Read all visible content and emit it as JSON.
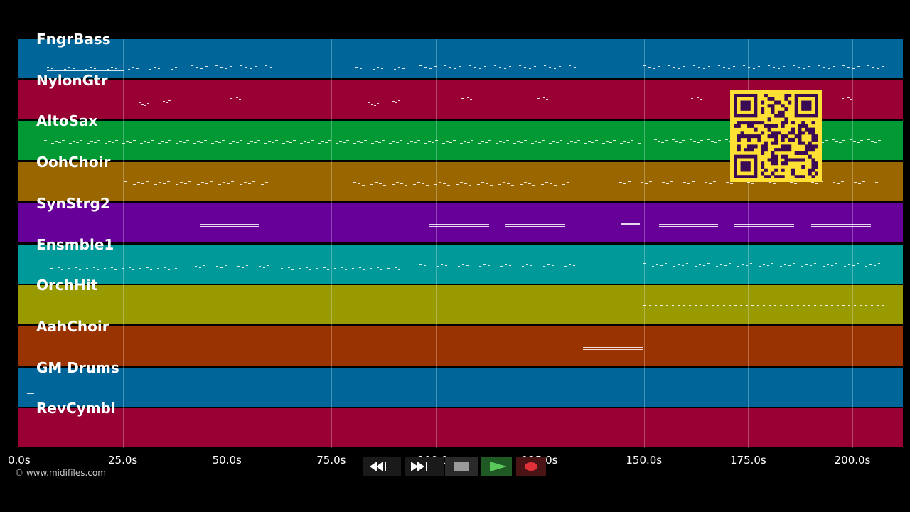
{
  "tracks": [
    {
      "name": "FngrBass",
      "color": "#006699"
    },
    {
      "name": "NylonGtr",
      "color": "#990033"
    },
    {
      "name": "AltoSax",
      "color": "#009933"
    },
    {
      "name": "OohChoir",
      "color": "#996600"
    },
    {
      "name": "SynStrg2",
      "color": "#660099"
    },
    {
      "name": "Ensmble1",
      "color": "#009999"
    },
    {
      "name": "OrchHit",
      "color": "#999900"
    },
    {
      "name": "AahChoir",
      "color": "#993300"
    },
    {
      "name": "GM Drums",
      "color": "#006699"
    },
    {
      "name": "RevCymbl",
      "color": "#990033"
    }
  ],
  "timeline": {
    "ticks": [
      "0.0s",
      "25.0s",
      "50.0s",
      "75.0s",
      "100.0s",
      "125.0s",
      "150.0s",
      "175.0s",
      "200.0s"
    ]
  },
  "copyright": "© www.midifiles.com",
  "transport": {
    "rewind_icon": "rewind-icon",
    "fast_forward_icon": "fast-forward-icon",
    "stop_icon": "stop-icon",
    "play_icon": "play-icon",
    "record_icon": "record-icon"
  },
  "qr_code": {
    "color": "#ffe135"
  }
}
